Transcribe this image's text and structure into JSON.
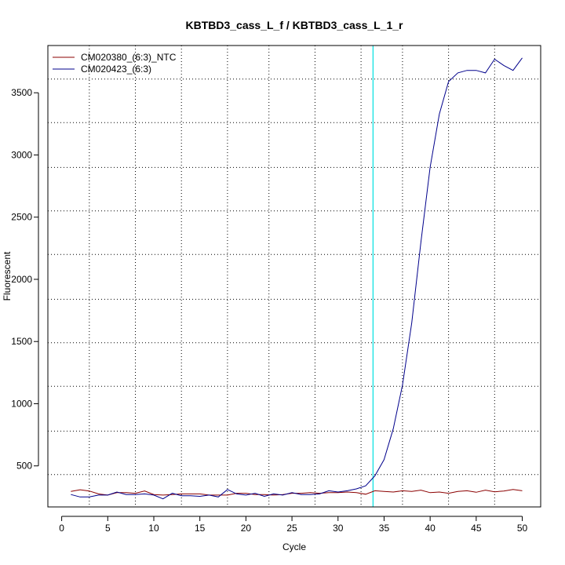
{
  "chart_data": {
    "type": "line",
    "title": "KBTBD3_cass_L_f / KBTBD3_cass_L_1_r",
    "xlabel": "Cycle",
    "ylabel": "Fluorescent",
    "xlim": [
      -1.5,
      52
    ],
    "ylim": [
      170,
      3880
    ],
    "x_ticks": [
      0,
      5,
      10,
      15,
      20,
      25,
      30,
      35,
      40,
      45,
      50
    ],
    "x_tick_labels": [
      "0",
      "5",
      "10",
      "15",
      "20",
      "25",
      "30",
      "35",
      "40",
      "45",
      "50"
    ],
    "y_ticks": [
      500,
      1000,
      1500,
      2000,
      2500,
      3000,
      3500
    ],
    "y_tick_labels": [
      "500",
      "1000",
      "1500",
      "2000",
      "2500",
      "3000",
      "3500"
    ],
    "grid": true,
    "grid_x": [
      3,
      8,
      13,
      18,
      22.5,
      27.5,
      32.5,
      37,
      42,
      47
    ],
    "grid_y": [
      430,
      780,
      1140,
      1490,
      1840,
      2200,
      2550,
      2900,
      3260,
      3610
    ],
    "legend": "top-left",
    "threshold_cycle": 33.8,
    "threshold_color": "#00e0e0",
    "x": [
      1,
      2,
      3,
      4,
      5,
      6,
      7,
      8,
      9,
      10,
      11,
      12,
      13,
      14,
      15,
      16,
      17,
      18,
      19,
      20,
      21,
      22,
      23,
      24,
      25,
      26,
      27,
      28,
      29,
      30,
      31,
      32,
      33,
      34,
      35,
      36,
      37,
      38,
      39,
      40,
      41,
      42,
      43,
      44,
      45,
      46,
      47,
      48,
      49,
      50
    ],
    "series": [
      {
        "name": "CM020380_(6:3)_NTC",
        "color": "#8b0000",
        "values": [
          295,
          308,
          298,
          275,
          265,
          285,
          285,
          280,
          298,
          270,
          265,
          270,
          275,
          275,
          275,
          265,
          265,
          265,
          280,
          280,
          270,
          270,
          265,
          270,
          280,
          280,
          285,
          280,
          285,
          285,
          290,
          285,
          272,
          300,
          295,
          290,
          300,
          295,
          305,
          285,
          290,
          280,
          295,
          300,
          288,
          305,
          292,
          298,
          310,
          300
        ]
      },
      {
        "name": "CM020423_(6:3)",
        "color": "#00008b",
        "values": [
          270,
          250,
          250,
          265,
          265,
          290,
          270,
          270,
          275,
          265,
          235,
          280,
          260,
          260,
          255,
          265,
          250,
          310,
          275,
          265,
          280,
          255,
          275,
          265,
          285,
          270,
          270,
          275,
          300,
          290,
          300,
          315,
          340,
          420,
          550,
          800,
          1150,
          1650,
          2300,
          2900,
          3330,
          3590,
          3660,
          3680,
          3680,
          3660,
          3770,
          3720,
          3680,
          3780
        ]
      }
    ]
  }
}
